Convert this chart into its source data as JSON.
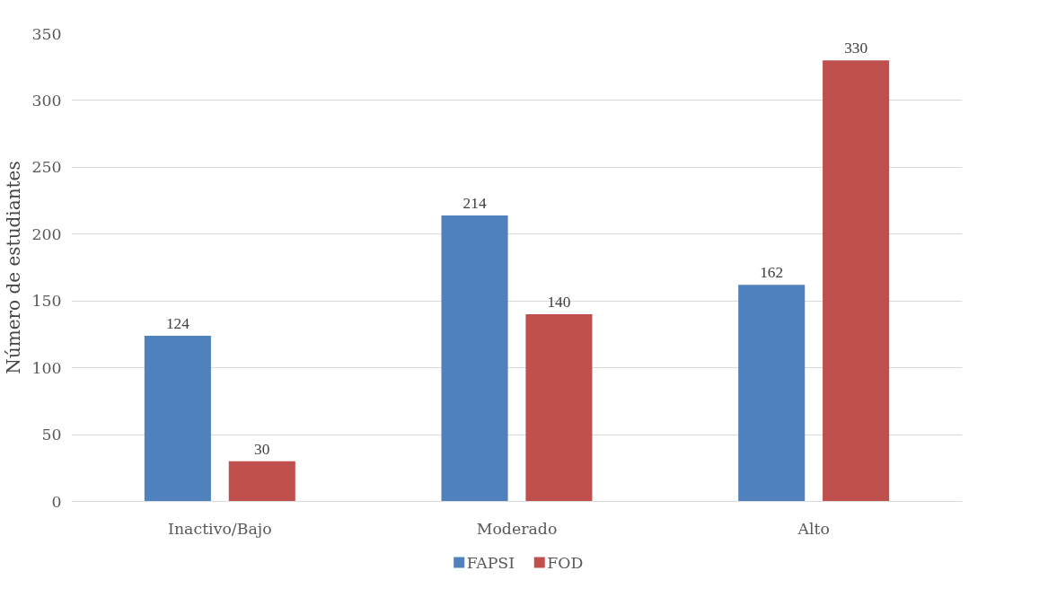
{
  "chart_data": {
    "type": "bar",
    "ylabel": "Número de estudiantes",
    "categories": [
      "Inactivo/Bajo",
      "Moderado",
      "Alto"
    ],
    "series": [
      {
        "name": "FAPSI",
        "color": "#4f81bd",
        "values": [
          124,
          214,
          162
        ]
      },
      {
        "name": "FOD",
        "color": "#c0504d",
        "values": [
          30,
          140,
          330
        ]
      }
    ],
    "ylim": [
      0,
      350
    ],
    "yticks": [
      0,
      50,
      100,
      150,
      200,
      250,
      300,
      350
    ],
    "grid": "y",
    "legend": "bottom",
    "data_labels": true
  }
}
